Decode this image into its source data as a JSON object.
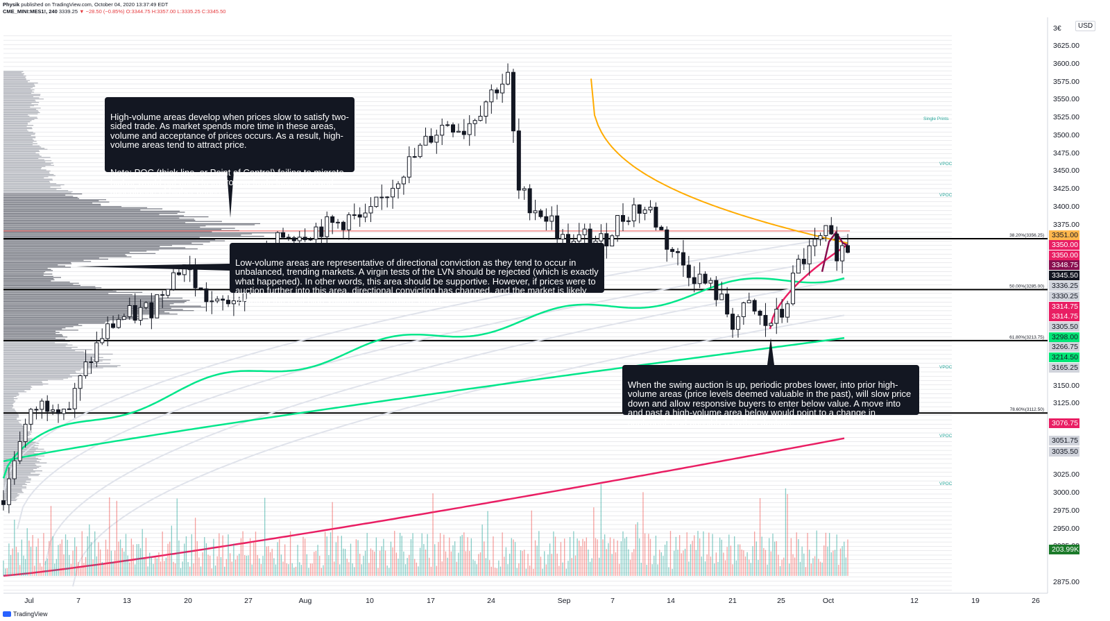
{
  "header": {
    "author": "Physik",
    "published_line": "published on TradingView.com, October 04, 2020 13:37:49 EDT",
    "symbol": "CME_MINI:MES1!, 240",
    "last": "3339.25",
    "change": "−28.50 (−0.85%)",
    "ohlc": "O:3344.75 H:3357.00 L:3335.25 C:3345.50"
  },
  "currency_button": "USD",
  "footer_brand": "TradingView",
  "notes": {
    "high_volume": {
      "p1": "High-volume areas develop when prices slow to satisfy two-sided trade. As market spends more time in these areas, volume and acceptance of prices occurs. As a result, high-volume areas tend to attract price.",
      "p2": "Note: POC (thick line, or Point of Control) failing to migrate higher would not point to improving trade facilitation and acceptance of higher prices."
    },
    "low_volume": {
      "p1": "Low-volume areas are representative of directional conviction as they tend to occur in unbalanced, trending markets. A virgin tests of the LVN should be rejected (which is exactly what happened). In other words, this area should be supportive. However, if prices were to auction further into this area, directional conviction has changed, and the market is likely targeting the next high-volume concentration, below."
    },
    "swing_auction": {
      "p1": "When the swing auction is up, periodic probes lower, into prior high-volume areas (price levels deemed valuable in the past), will slow price down and allow responsive buyers to enter below value. A move into and past a high-volume area below would point to a change in sentiment, and possibly a further decline."
    }
  },
  "fib_labels": [
    "38.20%(3356.25)",
    "50.00%(3285.00)",
    "61.80%(3213.75)",
    "78.60%(3112.50)"
  ],
  "annotations": [
    "Single Prints",
    "VPOC",
    "VPOC",
    "VPOC",
    "VPOC",
    "VPOC"
  ],
  "price_axis_ticks": [
    "3625.00",
    "3600.00",
    "3575.00",
    "3550.00",
    "3525.00",
    "3500.00",
    "3475.00",
    "3450.00",
    "3425.00",
    "3400.00",
    "3375.00",
    "3150.00",
    "3125.00",
    "3100.00",
    "3025.00",
    "3000.00",
    "2975.00",
    "2950.00",
    "2925.00",
    "2875.00"
  ],
  "price_axis_top_partial": "3€",
  "time_axis_ticks": [
    "Jul",
    "7",
    "13",
    "20",
    "27",
    "Aug",
    "10",
    "17",
    "24",
    "Sep",
    "7",
    "14",
    "21",
    "25",
    "Oct",
    "12",
    "19",
    "26"
  ],
  "price_labels": [
    {
      "text": "3351.00",
      "bg": "#ffb74d",
      "fg": "#131722"
    },
    {
      "text": "3350.00",
      "bg": "#e91e63",
      "fg": "#ffffff"
    },
    {
      "text": "3350.00",
      "bg": "#e91e63",
      "fg": "#ffffff"
    },
    {
      "text": "3348.75",
      "bg": "#880e4f",
      "fg": "#ffffff"
    },
    {
      "text": "3345.50",
      "bg": "#131722",
      "fg": "#ffffff"
    },
    {
      "text": "3336.25",
      "bg": "#d1d4dc",
      "fg": "#131722"
    },
    {
      "text": "3330.25",
      "bg": "#d1d4dc",
      "fg": "#131722"
    },
    {
      "text": "3314.75",
      "bg": "#e91e63",
      "fg": "#ffffff"
    },
    {
      "text": "3314.75",
      "bg": "#e91e63",
      "fg": "#ffffff"
    },
    {
      "text": "3305.50",
      "bg": "#d1d4dc",
      "fg": "#131722"
    },
    {
      "text": "3298.00",
      "bg": "#00e676",
      "fg": "#131722"
    },
    {
      "text": "3266.75",
      "bg": "#d1d4dc",
      "fg": "#131722"
    },
    {
      "text": "3214.50",
      "bg": "#00e676",
      "fg": "#131722"
    },
    {
      "text": "3165.25",
      "bg": "#d1d4dc",
      "fg": "#131722"
    },
    {
      "text": "3076.75",
      "bg": "#e91e63",
      "fg": "#ffffff"
    },
    {
      "text": "3051.75",
      "bg": "#d1d4dc",
      "fg": "#131722"
    },
    {
      "text": "3035.50",
      "bg": "#d1d4dc",
      "fg": "#131722"
    },
    {
      "text": "203.99K",
      "bg": "#1b7a2a",
      "fg": "#ffffff"
    }
  ],
  "colors": {
    "bull": "#26a69a",
    "bear": "#ef5350",
    "vwap_green": "#00e68a",
    "vwap_red": "#e91e63",
    "vwap_orange": "#ffab00",
    "vwap_maroon": "#880e4f",
    "poc_red": "#ef5350",
    "annotation": "#26a69a"
  },
  "chart_data": {
    "type": "candlestick",
    "instrument": "CME_MINI:MES1!, 240",
    "x_range": [
      "Jul",
      "Oct"
    ],
    "ylim": [
      2850,
      3650
    ],
    "fib_levels": [
      {
        "label": "38.20%",
        "value": 3356.25
      },
      {
        "label": "50.00%",
        "value": 3285.0
      },
      {
        "label": "61.80%",
        "value": 3213.75
      },
      {
        "label": "78.60%",
        "value": 3112.5
      }
    ],
    "poc": 3367,
    "last_close": 3345.5,
    "close_path": [
      [
        0,
        2990
      ],
      [
        3,
        3080
      ],
      [
        6,
        3120
      ],
      [
        9,
        3130
      ],
      [
        12,
        3120
      ],
      [
        15,
        3175
      ],
      [
        18,
        3220
      ],
      [
        21,
        3245
      ],
      [
        24,
        3250
      ],
      [
        27,
        3260
      ],
      [
        30,
        3300
      ],
      [
        33,
        3320
      ],
      [
        36,
        3280
      ],
      [
        39,
        3260
      ],
      [
        42,
        3275
      ],
      [
        45,
        3300
      ],
      [
        48,
        3330
      ],
      [
        51,
        3360
      ],
      [
        54,
        3365
      ],
      [
        57,
        3370
      ],
      [
        60,
        3375
      ],
      [
        63,
        3385
      ],
      [
        66,
        3380
      ],
      [
        69,
        3410
      ],
      [
        72,
        3445
      ],
      [
        75,
        3470
      ],
      [
        78,
        3500
      ],
      [
        81,
        3520
      ],
      [
        84,
        3510
      ],
      [
        87,
        3540
      ],
      [
        90,
        3570
      ],
      [
        92,
        3580
      ],
      [
        94,
        3420
      ],
      [
        97,
        3400
      ],
      [
        100,
        3380
      ],
      [
        103,
        3340
      ],
      [
        106,
        3360
      ],
      [
        109,
        3350
      ],
      [
        112,
        3380
      ],
      [
        115,
        3400
      ],
      [
        118,
        3395
      ],
      [
        121,
        3350
      ],
      [
        124,
        3320
      ],
      [
        127,
        3300
      ],
      [
        130,
        3280
      ],
      [
        133,
        3240
      ],
      [
        136,
        3260
      ],
      [
        139,
        3235
      ],
      [
        142,
        3250
      ],
      [
        145,
        3320
      ],
      [
        148,
        3345
      ],
      [
        150,
        3360
      ],
      [
        152,
        3340
      ],
      [
        154,
        3345
      ]
    ]
  }
}
